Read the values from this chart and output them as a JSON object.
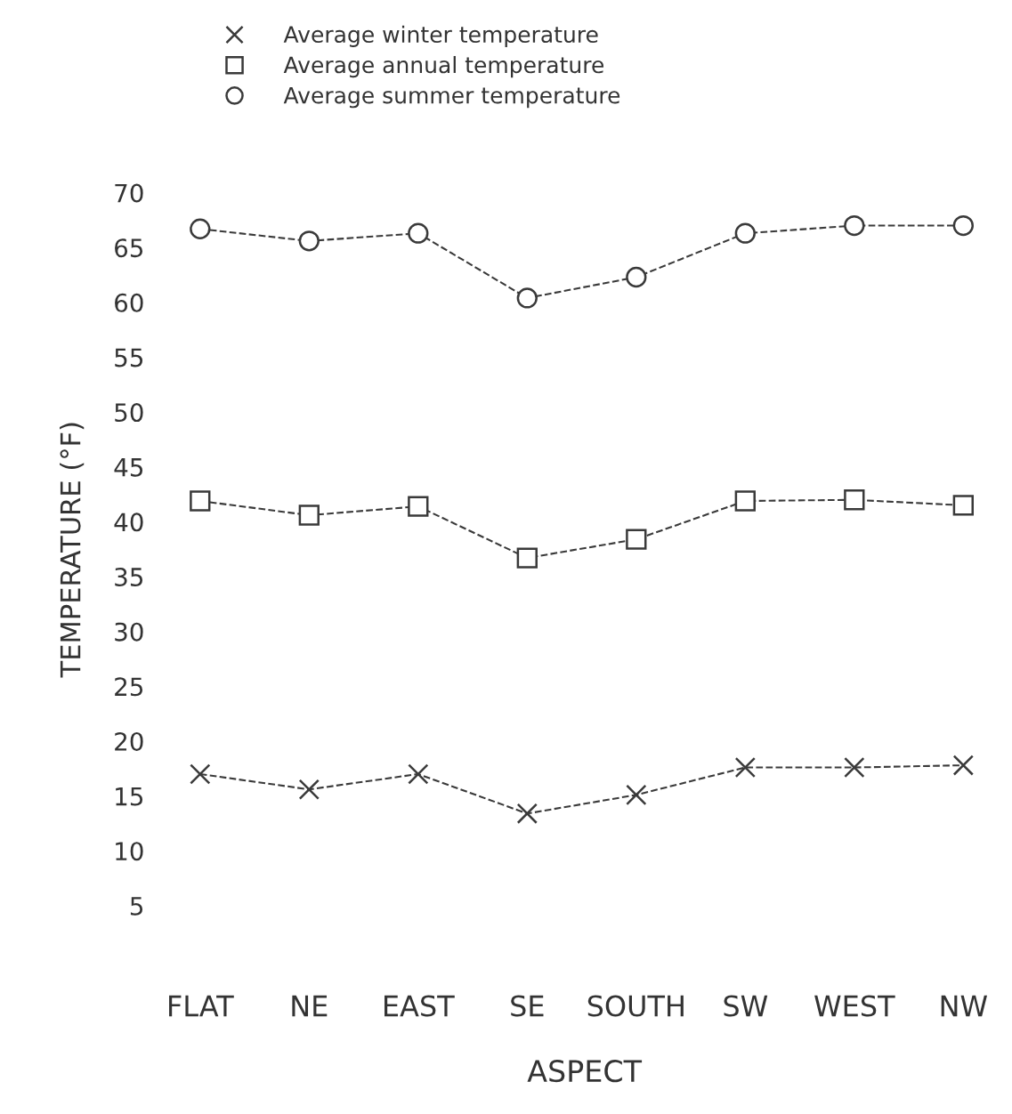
{
  "chart_data": {
    "type": "line",
    "categories": [
      "FLAT",
      "NE",
      "EAST",
      "SE",
      "SOUTH",
      "SW",
      "WEST",
      "NW"
    ],
    "series": [
      {
        "name": "Average winter temperature",
        "color": "#3a3a3a",
        "marker": "cross",
        "values": [
          17.0,
          15.6,
          17.0,
          13.4,
          15.1,
          17.6,
          17.6,
          17.8
        ]
      },
      {
        "name": "Average annual temperature",
        "color": "#3a3a3a",
        "marker": "square",
        "values": [
          41.9,
          40.6,
          41.4,
          36.7,
          38.4,
          41.9,
          42.0,
          41.5
        ]
      },
      {
        "name": "Average summer temperature",
        "color": "#3a3a3a",
        "marker": "circle",
        "values": [
          66.7,
          65.6,
          66.3,
          60.4,
          62.3,
          66.3,
          67.0,
          67.0
        ]
      }
    ],
    "xlabel": "ASPECT",
    "ylabel": "TEMPERATURE (°F)",
    "ylim": [
      5,
      70
    ],
    "yticks": [
      5,
      10,
      15,
      20,
      25,
      30,
      35,
      40,
      45,
      50,
      55,
      60,
      65,
      70
    ],
    "line_style": "dashed",
    "legend": "top left",
    "grid": false
  }
}
